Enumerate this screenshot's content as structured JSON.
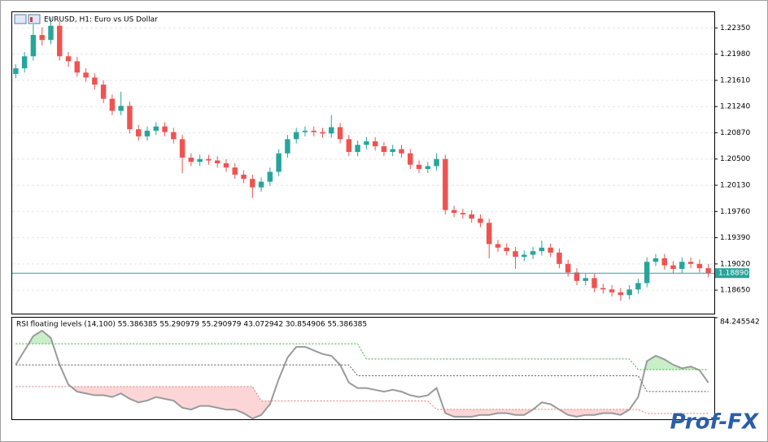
{
  "chart_data": [
    {
      "type": "candlestick",
      "title": "EURUSD, H1:  Euro vs US Dollar",
      "open": [
        1.217,
        1.2178,
        1.2195,
        1.2225,
        1.2218,
        1.2238,
        1.2195,
        1.2188,
        1.2172,
        1.2165,
        1.2155,
        1.2135,
        1.2118,
        1.2125,
        1.2092,
        1.2082,
        1.209,
        1.2096,
        1.2088,
        1.2078,
        1.2052,
        1.2046,
        1.205,
        1.2048,
        1.2044,
        1.2038,
        1.2028,
        1.2022,
        1.201,
        1.2018,
        1.2032,
        1.2058,
        1.2078,
        1.2088,
        1.209,
        1.2088,
        1.2086,
        1.2095,
        1.2078,
        1.206,
        1.207,
        1.2075,
        1.2068,
        1.206,
        1.2064,
        1.2058,
        1.2042,
        1.2036,
        1.204,
        1.205,
        1.1978,
        1.1974,
        1.1972,
        1.1966,
        1.196,
        1.193,
        1.1925,
        1.192,
        1.1912,
        1.1915,
        1.192,
        1.1925,
        1.1918,
        1.1902,
        1.189,
        1.1878,
        1.1882,
        1.1868,
        1.1866,
        1.1862,
        1.1858,
        1.1866,
        1.1875,
        1.1905,
        1.191,
        1.19,
        1.1895,
        1.1905,
        1.1902,
        1.1896
      ],
      "high": [
        1.2184,
        1.2201,
        1.224,
        1.2236,
        1.225,
        1.2244,
        1.2201,
        1.2194,
        1.2178,
        1.2171,
        1.2161,
        1.2141,
        1.2145,
        1.2131,
        1.2098,
        1.2096,
        1.2102,
        1.2102,
        1.2094,
        1.2084,
        1.2058,
        1.2056,
        1.2056,
        1.2054,
        1.205,
        1.2044,
        1.2034,
        1.2028,
        1.2024,
        1.2038,
        1.2064,
        1.2084,
        1.2094,
        1.2096,
        1.2096,
        1.2094,
        1.2112,
        1.2101,
        1.2084,
        1.2076,
        1.2081,
        1.2081,
        1.2074,
        1.207,
        1.207,
        1.2064,
        1.2048,
        1.2046,
        1.2058,
        1.2056,
        1.1984,
        1.198,
        1.1978,
        1.1972,
        1.1966,
        1.1936,
        1.1931,
        1.1926,
        1.1921,
        1.1926,
        1.1935,
        1.1931,
        1.1924,
        1.1908,
        1.1896,
        1.1888,
        1.1888,
        1.1874,
        1.1872,
        1.1868,
        1.1872,
        1.1881,
        1.1911,
        1.1916,
        1.1916,
        1.1906,
        1.1911,
        1.1911,
        1.1908,
        1.1902
      ],
      "low": [
        1.2164,
        1.2172,
        1.2189,
        1.221,
        1.2212,
        1.2189,
        1.218,
        1.2166,
        1.2159,
        1.2148,
        1.2129,
        1.2112,
        1.2112,
        1.2086,
        1.2076,
        1.2076,
        1.2084,
        1.2082,
        1.2072,
        1.203,
        1.204,
        1.204,
        1.2042,
        1.2038,
        1.2032,
        1.2022,
        1.2016,
        1.1995,
        1.2004,
        1.2012,
        1.2026,
        1.2052,
        1.2072,
        1.2082,
        1.2082,
        1.208,
        1.208,
        1.2072,
        1.2054,
        1.2054,
        1.2064,
        1.2062,
        1.2054,
        1.2054,
        1.2052,
        1.2036,
        1.203,
        1.203,
        1.2034,
        1.1972,
        1.1968,
        1.1966,
        1.196,
        1.1954,
        1.191,
        1.1919,
        1.1914,
        1.1895,
        1.1906,
        1.1909,
        1.1914,
        1.1912,
        1.1896,
        1.1884,
        1.1872,
        1.1872,
        1.1862,
        1.186,
        1.1856,
        1.185,
        1.1852,
        1.186,
        1.1869,
        1.1899,
        1.1894,
        1.1889,
        1.1889,
        1.1896,
        1.189,
        1.1883
      ],
      "close": [
        1.2178,
        1.2195,
        1.2225,
        1.2218,
        1.2238,
        1.2195,
        1.2188,
        1.2172,
        1.2165,
        1.2155,
        1.2135,
        1.2118,
        1.2125,
        1.2092,
        1.2082,
        1.209,
        1.2096,
        1.2088,
        1.2078,
        1.2052,
        1.2046,
        1.205,
        1.2048,
        1.2044,
        1.2038,
        1.2028,
        1.2022,
        1.201,
        1.2018,
        1.2032,
        1.2058,
        1.2078,
        1.2088,
        1.209,
        1.2088,
        1.2086,
        1.2095,
        1.2078,
        1.206,
        1.207,
        1.2075,
        1.2068,
        1.206,
        1.2064,
        1.2058,
        1.2042,
        1.2036,
        1.204,
        1.205,
        1.1978,
        1.1974,
        1.1972,
        1.1966,
        1.196,
        1.193,
        1.1925,
        1.192,
        1.1912,
        1.1915,
        1.192,
        1.1925,
        1.1918,
        1.1902,
        1.189,
        1.1878,
        1.1882,
        1.1868,
        1.1866,
        1.1862,
        1.1858,
        1.1866,
        1.1875,
        1.1905,
        1.191,
        1.19,
        1.1895,
        1.1905,
        1.1902,
        1.1896,
        1.1889
      ],
      "up_color": "#26a69a",
      "down_color": "#ef5350",
      "ylim": [
        1.18319,
        1.22572
      ],
      "yticks": [
        {
          "value": 1.2235,
          "label": "1.22350"
        },
        {
          "value": 1.2198,
          "label": "1.21980"
        },
        {
          "value": 1.2161,
          "label": "1.21610"
        },
        {
          "value": 1.2124,
          "label": "1.21240"
        },
        {
          "value": 1.2087,
          "label": "1.20870"
        },
        {
          "value": 1.205,
          "label": "1.20500"
        },
        {
          "value": 1.2013,
          "label": "1.20130"
        },
        {
          "value": 1.1976,
          "label": "1.19760"
        },
        {
          "value": 1.1939,
          "label": "1.19390"
        },
        {
          "value": 1.1902,
          "label": "1.19020"
        },
        {
          "value": 1.1865,
          "label": "1.18650"
        }
      ],
      "current_price": {
        "value": 1.1889,
        "label": "1.18890"
      },
      "grid": true
    },
    {
      "type": "line",
      "title": "RSI floating levels (14,100) 55.386385 55.290979 55.290979 43.072942 30.854906 55.386385",
      "series": [
        {
          "name": "RSI",
          "color": "#9a9a9a",
          "values": [
            58,
            66,
            74,
            77,
            73,
            58,
            47,
            43,
            42,
            41,
            41,
            40,
            42,
            39,
            37,
            38,
            40,
            39,
            38,
            34,
            33,
            35,
            35,
            34,
            33,
            33,
            31,
            28,
            30,
            36,
            50,
            62,
            68,
            68,
            66,
            64,
            63,
            58,
            48,
            45,
            45,
            44,
            43,
            44,
            43,
            41,
            40,
            41,
            45,
            31,
            29,
            29,
            29,
            30,
            30,
            31,
            31,
            30,
            30,
            33,
            37,
            36,
            33,
            30,
            29,
            30,
            30,
            31,
            31,
            30,
            33,
            40,
            60,
            63,
            61,
            58,
            56,
            57,
            55,
            48
          ]
        },
        {
          "name": "Upper level",
          "color": "#3fae3f",
          "values": [
            69.7,
            69.7,
            69.7,
            69.7,
            69.7,
            69.7,
            69.7,
            69.7,
            69.7,
            69.7,
            69.7,
            69.7,
            69.7,
            69.7,
            69.7,
            69.7,
            69.7,
            69.7,
            69.7,
            69.7,
            69.7,
            69.7,
            69.7,
            69.7,
            69.7,
            69.7,
            69.7,
            69.7,
            69.7,
            69.7,
            69.7,
            69.7,
            69.7,
            69.7,
            69.7,
            69.7,
            69.7,
            69.7,
            69.7,
            69.7,
            61.2,
            61.2,
            61.2,
            61.2,
            61.2,
            61.2,
            61.2,
            61.2,
            61.2,
            61.2,
            61.2,
            61.2,
            61.2,
            61.2,
            61.2,
            61.2,
            61.2,
            61.2,
            61.2,
            61.2,
            61.2,
            61.2,
            61.2,
            61.2,
            61.2,
            61.2,
            61.2,
            61.2,
            61.2,
            61.2,
            61.2,
            55.290979,
            55.290979,
            55.290979,
            55.290979,
            55.290979,
            55.290979,
            55.290979,
            55.290979,
            55.290979
          ]
        },
        {
          "name": "Middle level",
          "color": "#555555",
          "values": [
            57.9,
            57.9,
            57.9,
            57.9,
            57.9,
            57.9,
            57.9,
            57.9,
            57.9,
            57.9,
            57.9,
            57.9,
            57.9,
            57.9,
            57.9,
            57.9,
            57.9,
            57.9,
            57.9,
            57.9,
            57.9,
            57.9,
            57.9,
            57.9,
            57.9,
            57.9,
            57.9,
            57.9,
            57.9,
            57.9,
            57.9,
            57.9,
            57.9,
            57.9,
            57.9,
            57.9,
            57.9,
            57.9,
            57.9,
            51.9,
            51.9,
            51.9,
            51.9,
            51.9,
            51.9,
            51.9,
            51.9,
            51.9,
            51.9,
            51.9,
            51.9,
            51.9,
            51.9,
            51.9,
            51.9,
            51.9,
            51.9,
            51.9,
            51.9,
            51.9,
            51.9,
            51.9,
            51.9,
            51.9,
            51.9,
            51.9,
            51.9,
            51.9,
            51.9,
            51.9,
            51.9,
            51.9,
            43.072942,
            43.072942,
            43.072942,
            43.072942,
            43.072942,
            43.072942,
            43.072942,
            43.072942
          ]
        },
        {
          "name": "Lower level",
          "color": "#e07a7a",
          "values": [
            45.8,
            45.8,
            45.8,
            45.8,
            45.8,
            45.8,
            45.8,
            45.8,
            45.8,
            45.8,
            45.8,
            45.8,
            45.8,
            45.8,
            45.8,
            45.8,
            45.8,
            45.8,
            45.8,
            45.8,
            45.8,
            45.8,
            45.8,
            45.8,
            45.8,
            45.8,
            45.8,
            45.8,
            37.8,
            37.8,
            37.8,
            37.8,
            37.8,
            37.8,
            37.8,
            37.8,
            37.8,
            37.8,
            37.8,
            37.8,
            37.8,
            37.8,
            37.8,
            37.8,
            37.8,
            37.8,
            37.8,
            37.8,
            33.1,
            33.1,
            33.1,
            33.1,
            33.1,
            33.1,
            33.1,
            33.1,
            33.1,
            33.1,
            33.1,
            33.1,
            33.1,
            33.1,
            33.1,
            33.1,
            33.1,
            33.1,
            33.1,
            33.1,
            33.1,
            33.1,
            33.1,
            33.1,
            30.854906,
            30.854906,
            30.854906,
            30.854906,
            30.854906,
            30.854906,
            30.854906,
            30.854906
          ]
        }
      ],
      "upper_fill": "#c9efc9",
      "lower_fill": "#fcd6d6",
      "ylim": [
        27.6,
        84.245542
      ],
      "yticks": [
        84.245542
      ]
    }
  ],
  "logo": "Prof-FX"
}
